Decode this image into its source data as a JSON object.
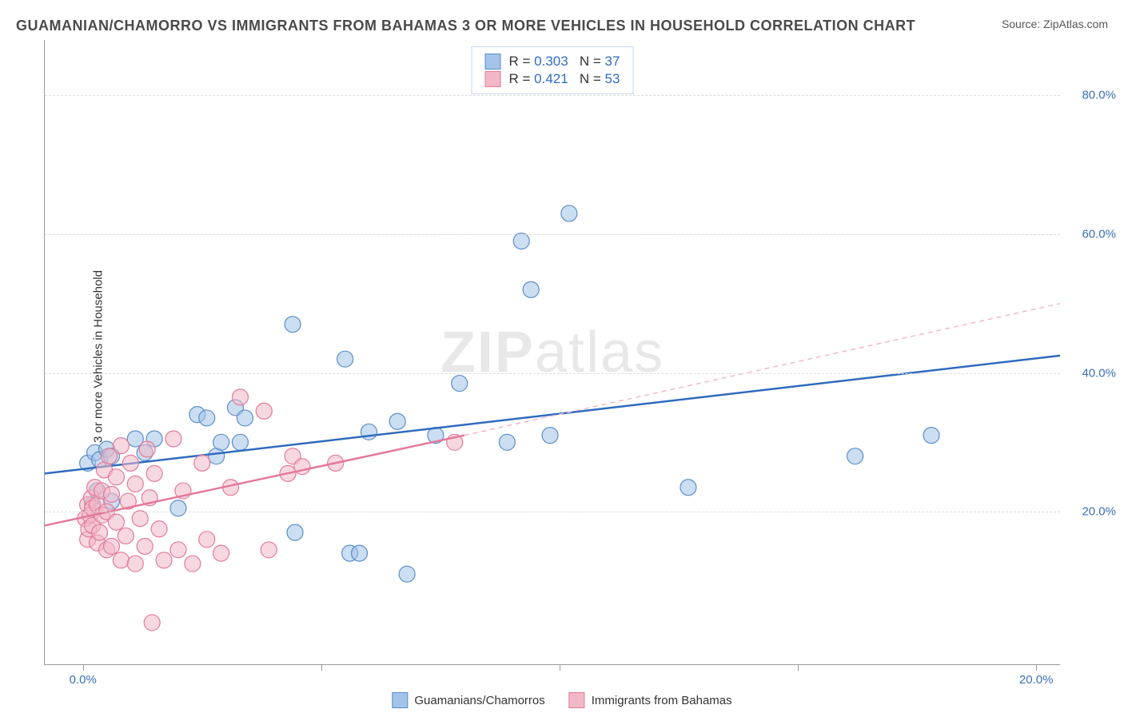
{
  "title": "GUAMANIAN/CHAMORRO VS IMMIGRANTS FROM BAHAMAS 3 OR MORE VEHICLES IN HOUSEHOLD CORRELATION CHART",
  "title_color": "#4a4a4a",
  "source_prefix": "Source: ",
  "source_name": "ZipAtlas.com",
  "source_color": "#555555",
  "ylabel": "3 or more Vehicles in Household",
  "ylabel_color": "#333333",
  "watermark_a": "ZIP",
  "watermark_b": "atlas",
  "chart": {
    "type": "scatter",
    "xlim": [
      -0.8,
      20.5
    ],
    "ylim": [
      -2,
      88
    ],
    "xtick_positions": [
      0,
      5,
      10,
      15,
      20
    ],
    "xtick_labels": [
      "0.0%",
      "",
      "",
      "",
      "20.0%"
    ],
    "xtick_label_color": "#3b6fb5",
    "ytick_positions": [
      20,
      40,
      60,
      80
    ],
    "ytick_labels": [
      "20.0%",
      "40.0%",
      "60.0%",
      "80.0%"
    ],
    "ytick_label_color": "#3b6fb5",
    "grid_color": "#dddddd",
    "background_color": "#ffffff",
    "marker_radius": 10,
    "marker_opacity": 0.55,
    "series": [
      {
        "label": "Guamanians/Chamorros",
        "color_fill": "#a3c3e8",
        "color_stroke": "#5a8dc9",
        "R": "0.303",
        "N": "37",
        "points": [
          [
            0.1,
            27
          ],
          [
            0.2,
            21
          ],
          [
            0.25,
            28.5
          ],
          [
            0.3,
            23
          ],
          [
            0.35,
            27.5
          ],
          [
            0.5,
            29
          ],
          [
            0.6,
            21.5
          ],
          [
            0.6,
            28
          ],
          [
            1.1,
            30.5
          ],
          [
            1.3,
            28.5
          ],
          [
            1.5,
            30.5
          ],
          [
            2.0,
            20.5
          ],
          [
            2.4,
            34
          ],
          [
            2.6,
            33.5
          ],
          [
            2.8,
            28
          ],
          [
            2.9,
            30
          ],
          [
            3.2,
            35
          ],
          [
            3.3,
            30
          ],
          [
            3.4,
            33.5
          ],
          [
            4.4,
            47
          ],
          [
            4.45,
            17
          ],
          [
            5.5,
            42
          ],
          [
            5.6,
            14
          ],
          [
            5.8,
            14
          ],
          [
            6.0,
            31.5
          ],
          [
            6.6,
            33
          ],
          [
            6.8,
            11
          ],
          [
            7.4,
            31
          ],
          [
            7.9,
            38.5
          ],
          [
            8.9,
            30
          ],
          [
            9.2,
            59
          ],
          [
            9.4,
            52
          ],
          [
            9.8,
            31
          ],
          [
            10.2,
            63
          ],
          [
            12.7,
            23.5
          ],
          [
            16.2,
            28
          ],
          [
            17.8,
            31
          ]
        ],
        "trend": {
          "x1": -0.8,
          "y1": 25.5,
          "x2": 20.5,
          "y2": 42.5,
          "color": "#2f6bbf",
          "width": 2.5,
          "dash": ""
        }
      },
      {
        "label": "Immigrants from Bahamas",
        "color_fill": "#f2b8c6",
        "color_stroke": "#e27a9a",
        "R": "0.421",
        "N": "53",
        "points": [
          [
            0.05,
            19
          ],
          [
            0.1,
            16
          ],
          [
            0.1,
            21
          ],
          [
            0.12,
            17.5
          ],
          [
            0.15,
            19.5
          ],
          [
            0.18,
            22
          ],
          [
            0.2,
            18
          ],
          [
            0.2,
            20.5
          ],
          [
            0.25,
            23.5
          ],
          [
            0.3,
            15.5
          ],
          [
            0.3,
            21
          ],
          [
            0.35,
            17
          ],
          [
            0.4,
            23
          ],
          [
            0.4,
            19.5
          ],
          [
            0.45,
            26
          ],
          [
            0.5,
            14.5
          ],
          [
            0.5,
            20
          ],
          [
            0.55,
            28
          ],
          [
            0.6,
            15
          ],
          [
            0.6,
            22.5
          ],
          [
            0.7,
            18.5
          ],
          [
            0.7,
            25
          ],
          [
            0.8,
            13
          ],
          [
            0.8,
            29.5
          ],
          [
            0.9,
            16.5
          ],
          [
            0.95,
            21.5
          ],
          [
            1.0,
            27
          ],
          [
            1.1,
            12.5
          ],
          [
            1.1,
            24
          ],
          [
            1.2,
            19
          ],
          [
            1.3,
            15
          ],
          [
            1.35,
            29
          ],
          [
            1.4,
            22
          ],
          [
            1.45,
            4
          ],
          [
            1.5,
            25.5
          ],
          [
            1.6,
            17.5
          ],
          [
            1.7,
            13
          ],
          [
            1.9,
            30.5
          ],
          [
            2.0,
            14.5
          ],
          [
            2.1,
            23
          ],
          [
            2.3,
            12.5
          ],
          [
            2.5,
            27
          ],
          [
            2.6,
            16
          ],
          [
            2.9,
            14
          ],
          [
            3.1,
            23.5
          ],
          [
            3.3,
            36.5
          ],
          [
            3.8,
            34.5
          ],
          [
            3.9,
            14.5
          ],
          [
            4.3,
            25.5
          ],
          [
            4.4,
            28
          ],
          [
            4.6,
            26.5
          ],
          [
            5.3,
            27
          ],
          [
            7.8,
            30
          ]
        ],
        "trend_solid": {
          "x1": -0.8,
          "y1": 18,
          "x2": 8.0,
          "y2": 31,
          "color": "#e27a9a",
          "width": 2.5
        },
        "trend_dashed": {
          "x1": 8.0,
          "y1": 31,
          "x2": 20.5,
          "y2": 50,
          "color": "#f2b8c6",
          "width": 1.5,
          "dash": "6,5"
        }
      }
    ],
    "stats_box": {
      "border_color": "#c5d9f0",
      "text_color": "#333333",
      "value_color": "#2f6bbf",
      "R_label": "R =",
      "N_label": "N ="
    }
  }
}
